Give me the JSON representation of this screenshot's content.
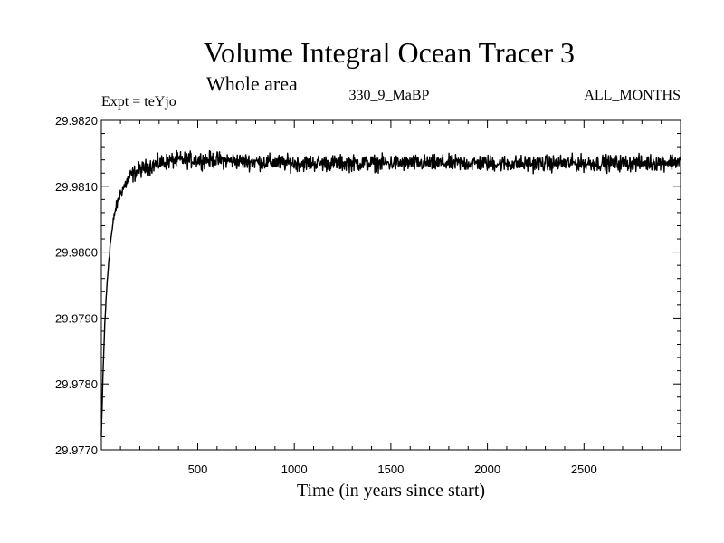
{
  "chart_data": {
    "type": "line",
    "title": "Volume Integral Ocean Tracer 3",
    "subtitle": "Whole area",
    "experiment": "Expt = teYjo",
    "run_label": "330_9_MaBP",
    "months_label": "ALL_MONTHS",
    "xlabel": "Time (in years since start)",
    "ylabel": "",
    "xlim": [
      1,
      3000
    ],
    "ylim": [
      29.977,
      29.982
    ],
    "xticks": [
      500,
      1000,
      1500,
      2000,
      2500
    ],
    "xtick_labels": [
      "500",
      "1000",
      "1500",
      "2000",
      "2500"
    ],
    "yticks": [
      29.977,
      29.978,
      29.979,
      29.98,
      29.981,
      29.982
    ],
    "ytick_labels": [
      "29.9770",
      "29.9780",
      "29.9790",
      "29.9800",
      "29.9810",
      "29.9820"
    ],
    "series": [
      {
        "name": "Ocean Tracer 3",
        "color": "#000000",
        "x": [
          1,
          10,
          20,
          30,
          40,
          50,
          60,
          70,
          80,
          100,
          120,
          150,
          200,
          250,
          300,
          350,
          400,
          500,
          600,
          700,
          800,
          900,
          1000,
          1200,
          1400,
          1600,
          1800,
          2000,
          2200,
          2400,
          2600,
          2800,
          3000
        ],
        "values": [
          29.9772,
          29.9782,
          29.979,
          29.9795,
          29.9799,
          29.9802,
          29.9804,
          29.9806,
          29.9807,
          29.9809,
          29.981,
          29.98115,
          29.98125,
          29.9813,
          29.98135,
          29.98138,
          29.9814,
          29.9814,
          29.9814,
          29.98138,
          29.98137,
          29.98136,
          29.98135,
          29.98135,
          29.98135,
          29.98135,
          29.98135,
          29.98135,
          29.98134,
          29.98135,
          29.98135,
          29.98135,
          29.98138
        ],
        "noise_amplitude": 0.00012
      }
    ]
  }
}
